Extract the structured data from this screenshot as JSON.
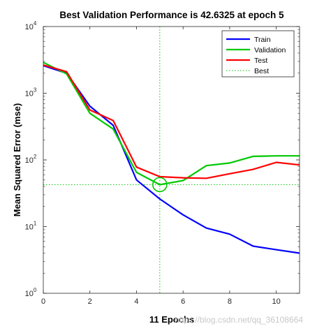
{
  "chart_data": {
    "type": "line",
    "title": "Best Validation Performance is 42.6325 at epoch 5",
    "xlabel": "11 Epochs",
    "ylabel": "Mean Squared Error  (mse)",
    "xlim": [
      0,
      11
    ],
    "ylim": [
      1,
      10000
    ],
    "yscale": "log",
    "xticks": [
      "0",
      "2",
      "4",
      "6",
      "8",
      "10"
    ],
    "yticks": [
      {
        "base": "10",
        "exp": "0"
      },
      {
        "base": "10",
        "exp": "1"
      },
      {
        "base": "10",
        "exp": "2"
      },
      {
        "base": "10",
        "exp": "3"
      },
      {
        "base": "10",
        "exp": "4"
      }
    ],
    "legend_position": "top-right",
    "series": [
      {
        "name": "Train",
        "color": "#0000ff",
        "x": [
          0,
          1,
          2,
          3,
          4,
          5,
          6,
          7,
          8,
          9,
          10,
          11
        ],
        "y": [
          2600,
          2000,
          640,
          330,
          50,
          26,
          15,
          9.5,
          7.7,
          5.1,
          4.5,
          4.0
        ]
      },
      {
        "name": "Validation",
        "color": "#00c800",
        "x": [
          0,
          1,
          2,
          3,
          4,
          5,
          6,
          7,
          8,
          9,
          10,
          11
        ],
        "y": [
          2900,
          1950,
          500,
          290,
          65,
          42.6325,
          49,
          82,
          90,
          113,
          115,
          115
        ]
      },
      {
        "name": "Test",
        "color": "#ff0000",
        "x": [
          0,
          1,
          2,
          3,
          4,
          5,
          6,
          7,
          8,
          9,
          10,
          11
        ],
        "y": [
          2650,
          2100,
          560,
          390,
          78,
          56,
          54,
          53,
          62,
          72,
          92,
          84
        ]
      }
    ],
    "best": {
      "label": "Best",
      "color": "#00c800",
      "x": 5,
      "y": 42.6325
    }
  },
  "watermark": "https://blog.csdn.net/qq_36108664"
}
